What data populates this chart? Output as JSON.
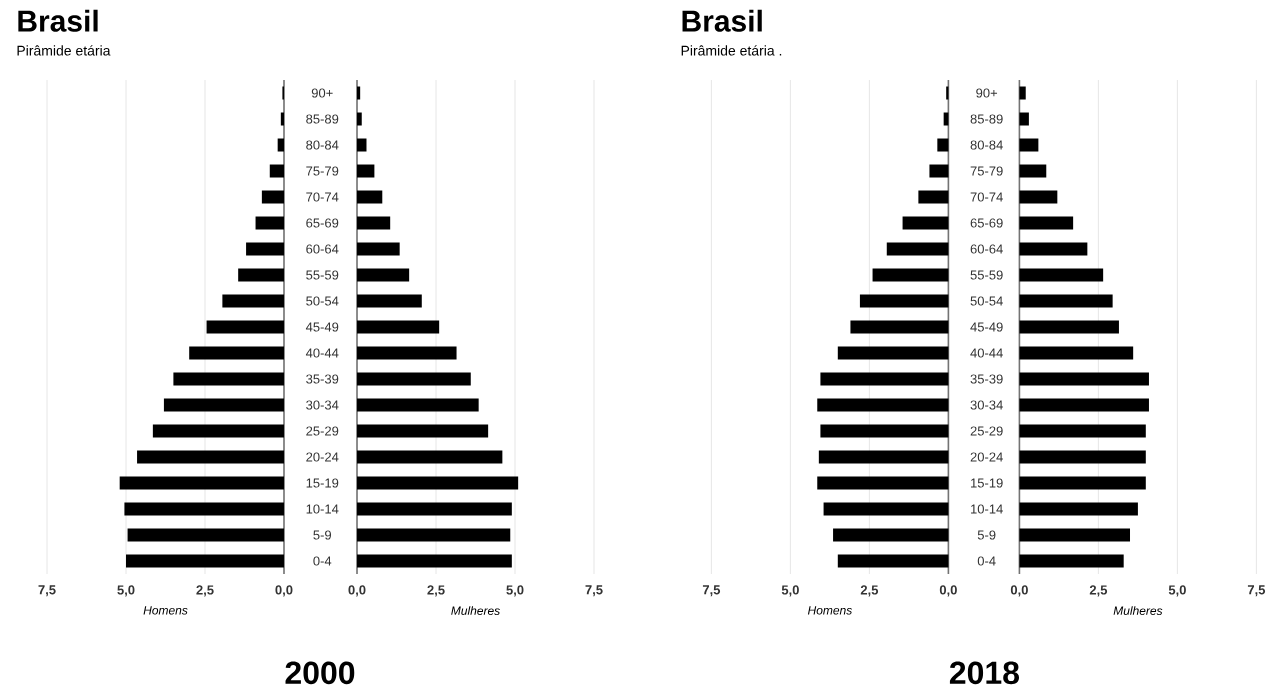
{
  "chart_data": [
    {
      "type": "bar",
      "orientation": "horizontal",
      "title": "Brasil",
      "subtitle": "Pirâmide etária",
      "xlabel": "Homens",
      "annotations": [
        "2000"
      ],
      "categories": [
        "90+",
        "85-89",
        "80-84",
        "75-79",
        "70-74",
        "65-69",
        "60-64",
        "55-59",
        "50-54",
        "45-49",
        "40-44",
        "35-39",
        "30-34",
        "25-29",
        "20-24",
        "15-19",
        "10-14",
        "5-9",
        "0-4"
      ],
      "values": [
        0.05,
        0.1,
        0.2,
        0.45,
        0.7,
        0.9,
        1.2,
        1.45,
        1.95,
        2.45,
        3.0,
        3.5,
        3.8,
        4.15,
        4.65,
        5.2,
        5.05,
        4.95,
        5.0
      ],
      "color": "#000000",
      "xlim": [
        7.5,
        0
      ],
      "xticks": [
        {
          "value": 7.5,
          "label": "7,5"
        },
        {
          "value": 5,
          "label": "5,0"
        },
        {
          "value": 2.5,
          "label": "2,5"
        },
        {
          "value": 0,
          "label": "0,0"
        }
      ],
      "grid": "x"
    },
    {
      "type": "bar",
      "orientation": "horizontal",
      "xlabel": "Mulheres",
      "categories": [
        null,
        null,
        null,
        null,
        null,
        null,
        null,
        null,
        null,
        null,
        null,
        null,
        null,
        null,
        null,
        null,
        null,
        null,
        null
      ],
      "values": [
        0.1,
        0.15,
        0.3,
        0.55,
        0.8,
        1.05,
        1.35,
        1.65,
        2.05,
        2.6,
        3.15,
        3.6,
        3.85,
        4.15,
        4.6,
        5.1,
        4.9,
        4.85,
        4.9
      ],
      "color": "#000000",
      "xlim": [
        0,
        7.5
      ],
      "xticks": [
        {
          "value": 0,
          "label": "0,0"
        },
        {
          "value": 2.5,
          "label": "2,5"
        },
        {
          "value": 5,
          "label": "5,0"
        },
        {
          "value": 7.5,
          "label": "7,5"
        }
      ],
      "grid": "x"
    },
    {
      "type": "bar",
      "orientation": "horizontal",
      "title": "Brasil",
      "subtitle": "Pirâmide etária .",
      "xlabel": "Homens",
      "annotations": [
        "2018"
      ],
      "categories": [
        "90+",
        "85-89",
        "80-84",
        "75-79",
        "70-74",
        "65-69",
        "60-64",
        "55-59",
        "50-54",
        "45-49",
        "40-44",
        "35-39",
        "30-34",
        "25-29",
        "20-24",
        "15-19",
        "10-14",
        "5-9",
        "0-4"
      ],
      "values": [
        0.07,
        0.15,
        0.35,
        0.6,
        0.95,
        1.45,
        1.95,
        2.4,
        2.8,
        3.1,
        3.5,
        4.05,
        4.15,
        4.05,
        4.1,
        4.15,
        3.95,
        3.65,
        3.5
      ],
      "color": "#000000",
      "xlim": [
        7.5,
        0
      ],
      "xticks": [
        {
          "value": 7.5,
          "label": "7,5"
        },
        {
          "value": 5,
          "label": "5,0"
        },
        {
          "value": 2.5,
          "label": "2,5"
        },
        {
          "value": 0,
          "label": "0,0"
        }
      ],
      "grid": "x"
    },
    {
      "type": "bar",
      "orientation": "horizontal",
      "xlabel": "Mulheres",
      "categories": [
        null,
        null,
        null,
        null,
        null,
        null,
        null,
        null,
        null,
        null,
        null,
        null,
        null,
        null,
        null,
        null,
        null,
        null,
        null
      ],
      "values": [
        0.2,
        0.3,
        0.6,
        0.85,
        1.2,
        1.7,
        2.15,
        2.65,
        2.95,
        3.15,
        3.6,
        4.1,
        4.1,
        4.0,
        4.0,
        4.0,
        3.75,
        3.5,
        3.3
      ],
      "color": "#000000",
      "xlim": [
        0,
        7.5
      ],
      "xticks": [
        {
          "value": 0,
          "label": "0,0"
        },
        {
          "value": 2.5,
          "label": "2,5"
        },
        {
          "value": 5,
          "label": "5,0"
        },
        {
          "value": 7.5,
          "label": "7,5"
        }
      ],
      "grid": "x"
    }
  ]
}
